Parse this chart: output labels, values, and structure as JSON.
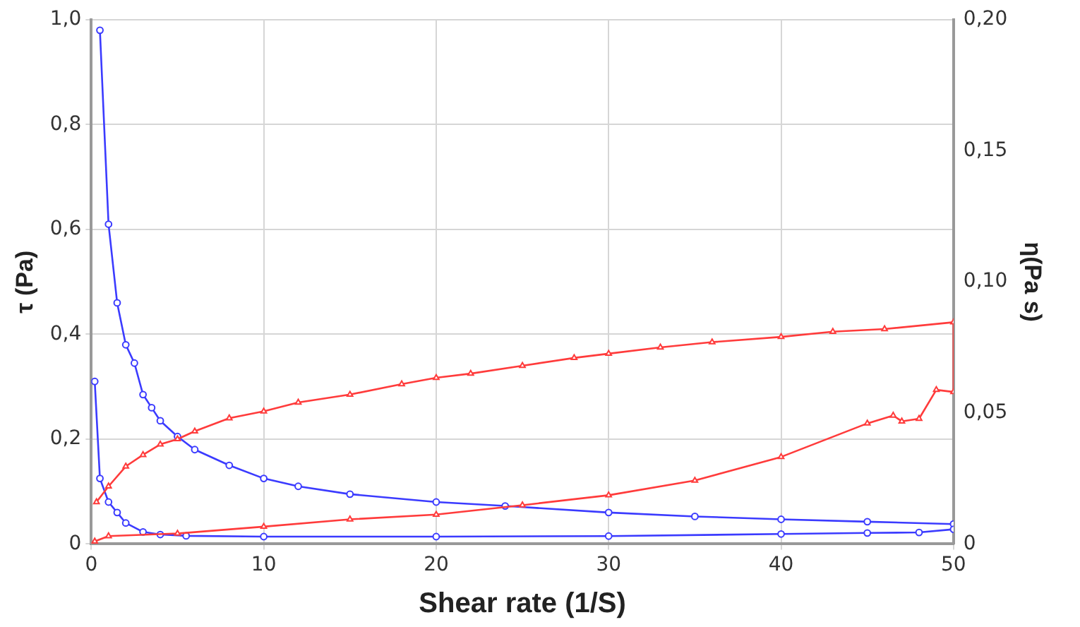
{
  "chart_data": {
    "type": "line",
    "xlabel": "Shear rate (1/S)",
    "ylabel": "τ (Pa)",
    "y2label": "η(Pa s)",
    "xlim": [
      0,
      50
    ],
    "xticks": [
      0,
      10,
      20,
      30,
      40,
      50
    ],
    "ylim": [
      0,
      1.0
    ],
    "yticks": [
      {
        "value": 0,
        "label": "0"
      },
      {
        "value": 0.2,
        "label": "0,2"
      },
      {
        "value": 0.4,
        "label": "0,4"
      },
      {
        "value": 0.6,
        "label": "0,6"
      },
      {
        "value": 0.8,
        "label": "0,8"
      },
      {
        "value": 1.0,
        "label": "1,0"
      }
    ],
    "y2lim": [
      0,
      0.2
    ],
    "y2ticks": [
      {
        "value": 0,
        "label": "0"
      },
      {
        "value": 0.05,
        "label": "0,05"
      },
      {
        "value": 0.1,
        "label": "0,10"
      },
      {
        "value": 0.15,
        "label": "0,15"
      },
      {
        "value": 0.2,
        "label": "0,20"
      }
    ],
    "grid": true,
    "line_style": "solid",
    "series": [
      {
        "color": "#ff3b3b",
        "marker": "triangle",
        "x": [
          0.3,
          1,
          2,
          3,
          4,
          5,
          6,
          8,
          10,
          12,
          15,
          18,
          20,
          22,
          25,
          28,
          30,
          33,
          36,
          40,
          43,
          46,
          50,
          50,
          49,
          48,
          47,
          46.5,
          45,
          40,
          35,
          30,
          25,
          20,
          15,
          10,
          5,
          1,
          0.2
        ],
        "values": [
          0.08,
          0.11,
          0.148,
          0.17,
          0.19,
          0.2,
          0.215,
          0.24,
          0.253,
          0.27,
          0.285,
          0.305,
          0.317,
          0.325,
          0.34,
          0.355,
          0.363,
          0.375,
          0.385,
          0.395,
          0.405,
          0.41,
          0.423,
          0.29,
          0.294,
          0.239,
          0.234,
          0.245,
          0.23,
          0.166,
          0.121,
          0.093,
          0.074,
          0.056,
          0.047,
          0.033,
          0.02,
          0.015,
          0.005
        ]
      },
      {
        "color": "#3b3bff",
        "marker": "circle",
        "axis": "y2",
        "x": [
          0.5,
          1,
          1.5,
          2,
          2.5,
          3,
          3.5,
          4,
          5,
          6,
          8,
          10,
          12,
          15,
          20,
          24,
          30,
          35,
          40,
          45,
          50,
          50,
          48,
          45,
          40,
          30,
          20,
          10,
          5.5,
          4,
          3,
          2,
          1.5,
          1,
          0.5,
          0.2
        ],
        "values": [
          0.196,
          0.122,
          0.092,
          0.076,
          0.069,
          0.057,
          0.052,
          0.047,
          0.041,
          0.036,
          0.03,
          0.025,
          0.022,
          0.019,
          0.016,
          0.0145,
          0.012,
          0.0105,
          0.0094,
          0.0085,
          0.0076,
          0.0056,
          0.0044,
          0.0042,
          0.0038,
          0.003,
          0.0028,
          0.0028,
          0.0031,
          0.0036,
          0.0046,
          0.008,
          0.012,
          0.016,
          0.025,
          0.062
        ]
      }
    ]
  }
}
